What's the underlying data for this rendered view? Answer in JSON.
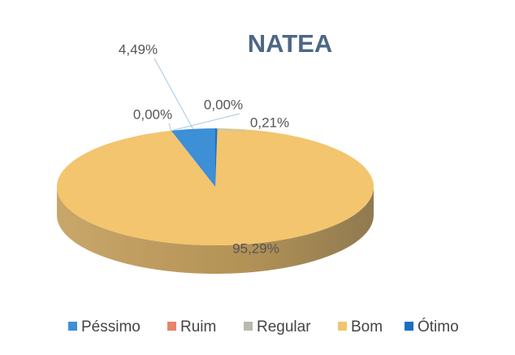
{
  "chart_data": {
    "type": "pie",
    "title": "NATEA",
    "categories": [
      "Péssimo",
      "Ruim",
      "Regular",
      "Bom",
      "Ótimo"
    ],
    "values": [
      4.49,
      0,
      0,
      95.29,
      0.21
    ],
    "value_labels": [
      "4,49%",
      "0,00%",
      "0,00%",
      "95,29%",
      "0,21%"
    ],
    "colors": [
      "#3d8fd6",
      "#e8836a",
      "#b9b9b0",
      "#f2c56e",
      "#1a6fc4"
    ],
    "legend": "bottom"
  }
}
